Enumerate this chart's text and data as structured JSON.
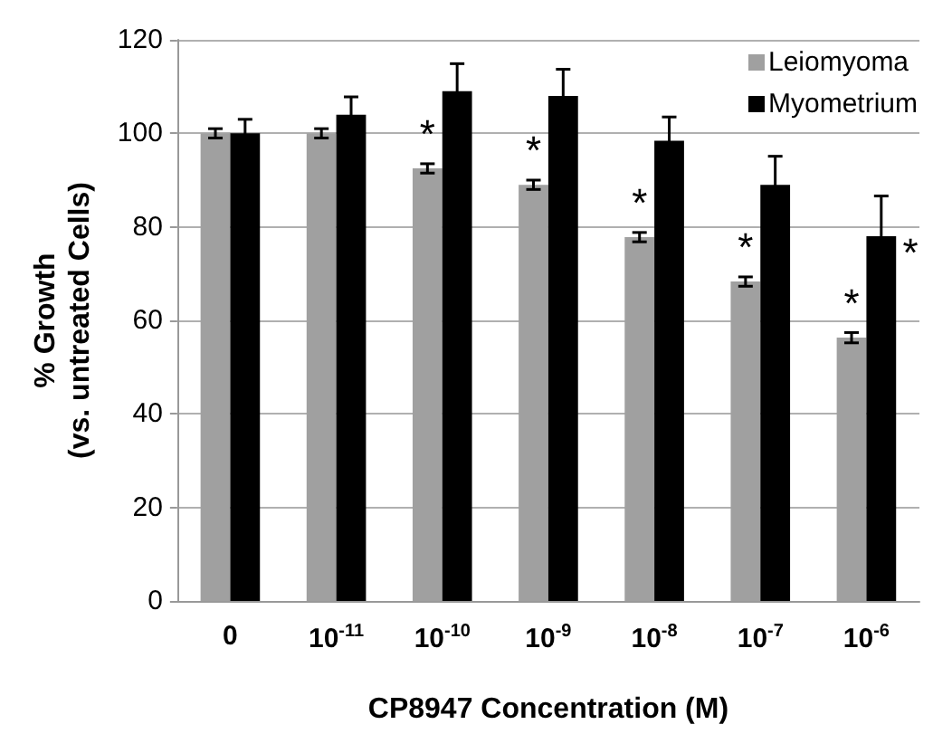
{
  "chart_data": {
    "type": "bar",
    "xlabel": "CP8947 Concentration (M)",
    "ylabel": "% Growth\n(vs. untreated Cells)",
    "categories": [
      "0",
      "10$^{-11}$",
      "10$^{-10}$",
      "10$^{-9}$",
      "10$^{-8}$",
      "10$^{-7}$",
      "10$^{-6}$"
    ],
    "series": [
      {
        "name": "Leiomyoma",
        "color": "#a0a0a0",
        "values": [
          100,
          100,
          92.5,
          89,
          77.8,
          68.3,
          56.3
        ],
        "errors": [
          1,
          1,
          1,
          1,
          1,
          1,
          1.1
        ],
        "value_labels": [
          null,
          null,
          "*",
          "*",
          "*",
          "*",
          "*"
        ]
      },
      {
        "name": "Myometrium",
        "color": "#000000",
        "values": [
          100,
          104,
          109,
          108,
          98.4,
          89,
          78
        ],
        "errors": [
          3,
          3.8,
          5.9,
          5.7,
          5.1,
          6.1,
          8.6
        ],
        "value_labels": [
          null,
          null,
          null,
          null,
          null,
          null,
          "*"
        ]
      }
    ],
    "ylim": [
      0,
      120
    ],
    "yticks": [
      0,
      20,
      40,
      60,
      80,
      100,
      120
    ],
    "grid": "y",
    "legend": "top right"
  }
}
